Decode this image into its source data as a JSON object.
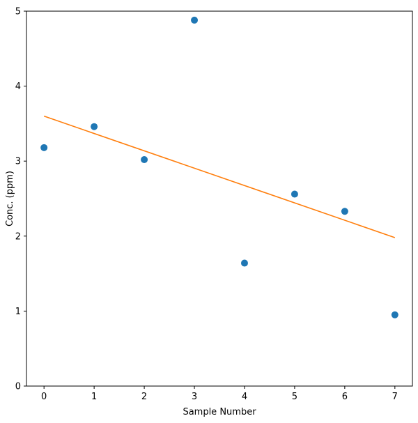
{
  "chart_data": {
    "type": "scatter",
    "title": "",
    "xlabel": "Sample Number",
    "ylabel": "Conc. (ppm)",
    "xlim": [
      -0.35,
      7.35
    ],
    "ylim": [
      0,
      5
    ],
    "xticks": [
      0,
      1,
      2,
      3,
      4,
      5,
      6,
      7
    ],
    "yticks": [
      0,
      1,
      2,
      3,
      4,
      5
    ],
    "grid": false,
    "legend": false,
    "series": [
      {
        "type": "scatter",
        "color": "#1f77b4",
        "x": [
          0,
          1,
          2,
          3,
          4,
          5,
          6,
          7
        ],
        "y": [
          3.18,
          3.46,
          3.02,
          4.88,
          1.64,
          2.56,
          2.33,
          0.95
        ]
      },
      {
        "type": "line",
        "color": "#ff7f0e",
        "x": [
          0,
          7
        ],
        "y": [
          3.6,
          1.98
        ]
      }
    ]
  }
}
